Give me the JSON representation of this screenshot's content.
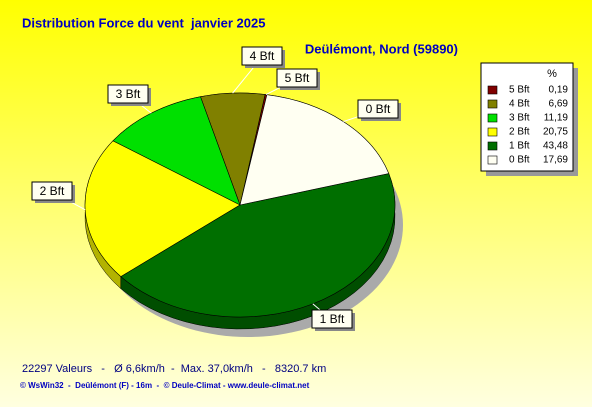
{
  "chart_data": {
    "type": "pie",
    "title": "Distribution Force du vent  janvier 2025",
    "subtitle": "Deülémont, Nord (59890)",
    "legend_header": "%",
    "legend": "right",
    "series": [
      {
        "name": "5 Bft",
        "color": "#800000",
        "values": [
          0.19
        ],
        "value_labels": [
          "0,19"
        ]
      },
      {
        "name": "4 Bft",
        "color": "#808000",
        "values": [
          6.69
        ],
        "value_labels": [
          "6,69"
        ]
      },
      {
        "name": "3 Bft",
        "color": "#00e000",
        "values": [
          11.19
        ],
        "value_labels": [
          "11,19"
        ]
      },
      {
        "name": "2 Bft",
        "color": "#ffff00",
        "values": [
          20.75
        ],
        "value_labels": [
          "20,75"
        ]
      },
      {
        "name": "1 Bft",
        "color": "#006f00",
        "values": [
          43.48
        ],
        "value_labels": [
          "43,48"
        ]
      },
      {
        "name": "0 Bft",
        "color": "#fffff2",
        "values": [
          17.69
        ],
        "value_labels": [
          "17,69"
        ]
      }
    ],
    "footer": "22297 Valeurs   -   Ø 6,6km/h  -  Max. 37,0km/h   -   8320.7 km",
    "credit": "© WsWin32  -  Deûlémont (F) - 16m  -  © Deule-Climat - www.deule-climat.net"
  }
}
